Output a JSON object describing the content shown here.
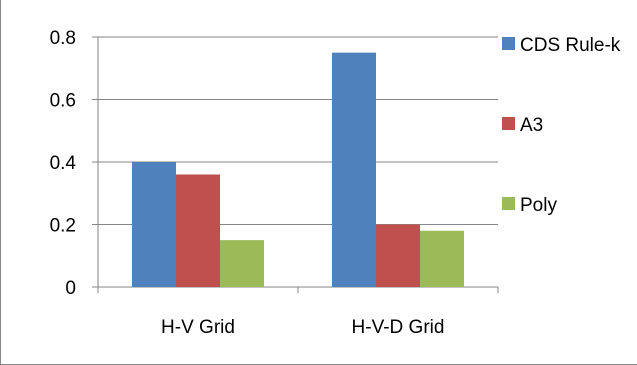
{
  "chart_data": {
    "type": "bar",
    "categories": [
      "H-V Grid",
      "H-V-D Grid"
    ],
    "series": [
      {
        "name": "CDS Rule-k",
        "values": [
          0.4,
          0.75
        ],
        "color": "#4F81BD"
      },
      {
        "name": "A3",
        "values": [
          0.36,
          0.2
        ],
        "color": "#C0504D"
      },
      {
        "name": "Poly",
        "values": [
          0.15,
          0.18
        ],
        "color": "#9BBB59"
      }
    ],
    "ylim": [
      0,
      0.8
    ],
    "yticks": [
      "0",
      "0.2",
      "0.4",
      "0.6",
      "0.8"
    ],
    "grid": true,
    "legend": "right"
  }
}
